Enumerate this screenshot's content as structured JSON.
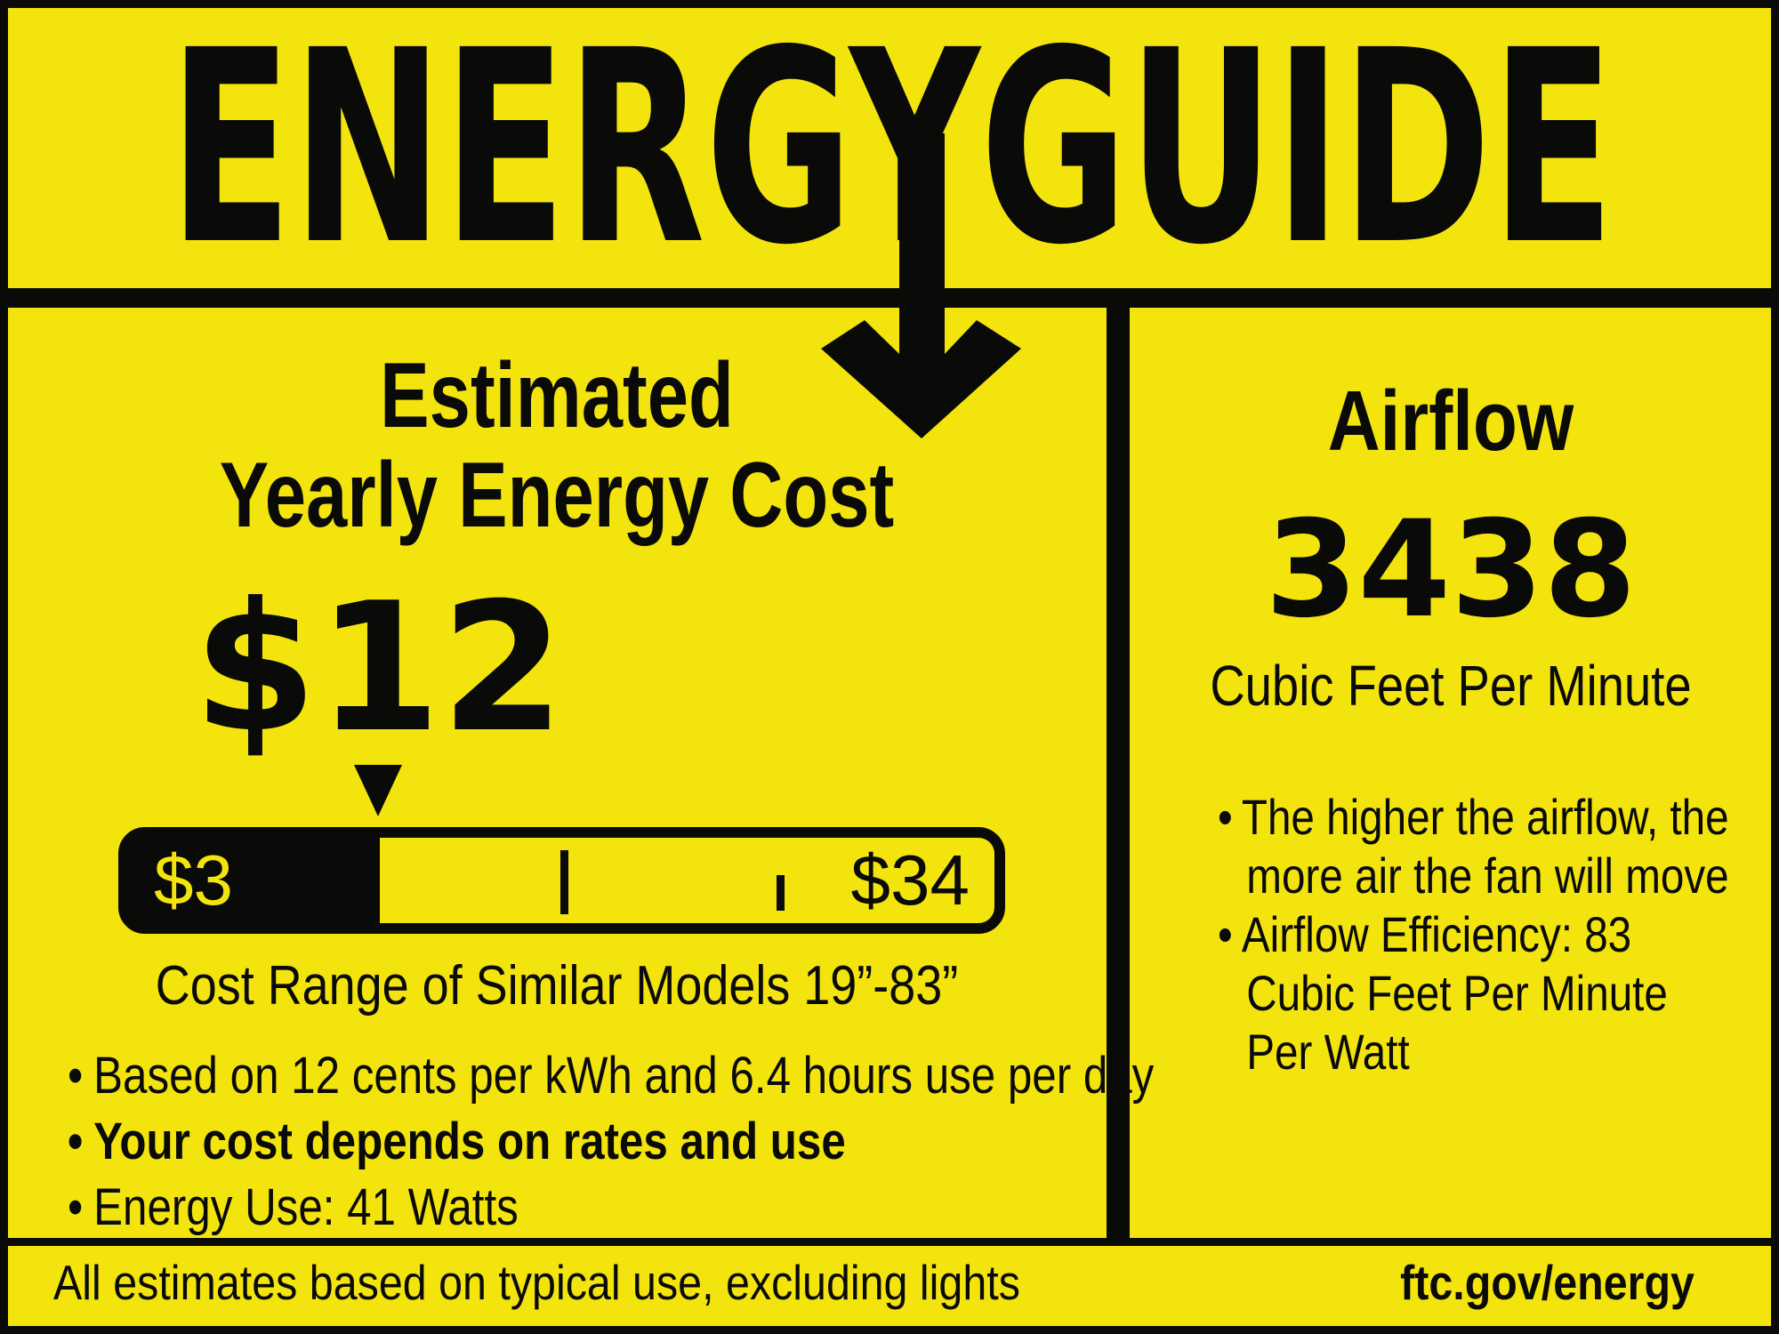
{
  "colors": {
    "yellow": "#F3E40E",
    "black": "#0A0A08"
  },
  "logo": {
    "text": "ENERGYGUIDE"
  },
  "left_panel": {
    "heading_line1": "Estimated",
    "heading_line2": "Yearly Energy Cost",
    "cost_value": "$12",
    "cost_scale": {
      "min": 3,
      "max": 34,
      "value": 12,
      "min_label": "$3",
      "max_label": "$34"
    },
    "range_caption": "Cost Range of Similar Models 19”-83”",
    "bullets": [
      {
        "text": "Based on 12 cents per kWh and 6.4 hours use per day",
        "bold": false
      },
      {
        "text": "Your cost depends on rates and use",
        "bold": true
      },
      {
        "text": "Energy Use: 41 Watts",
        "bold": false
      }
    ]
  },
  "right_panel": {
    "heading": "Airflow",
    "value": "3438",
    "unit": "Cubic Feet Per Minute",
    "bullets": [
      {
        "text": "The higher the airflow, the more air the fan will move"
      },
      {
        "text": "Airflow Efficiency: 83 Cubic Feet Per Minute Per Watt"
      }
    ]
  },
  "footer": {
    "left": "All estimates based on typical use, excluding lights",
    "right": "ftc.gov/energy"
  }
}
